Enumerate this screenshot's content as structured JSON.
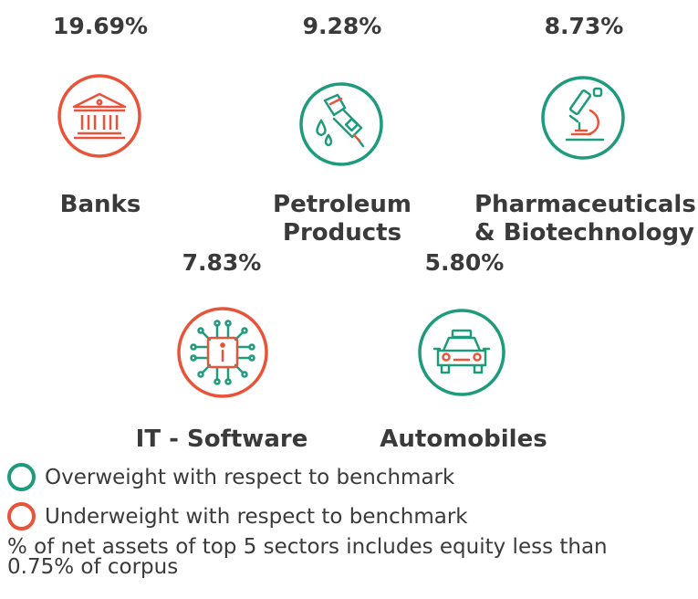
{
  "colors": {
    "overweight": "#1e9b7c",
    "underweight": "#e9533a"
  },
  "sectors": [
    {
      "name_line1": "Banks",
      "name_line2": "",
      "percent": "19.69%",
      "icon": "bank-icon",
      "weight": "underweight"
    },
    {
      "name_line1": "Petroleum",
      "name_line2": "Products",
      "percent": "9.28%",
      "icon": "fuel-nozzle-icon",
      "weight": "overweight"
    },
    {
      "name_line1": "Pharmaceuticals",
      "name_line2": "& Biotechnology",
      "percent": "8.73%",
      "icon": "microscope-icon",
      "weight": "overweight"
    },
    {
      "name_line1": "IT - Software",
      "name_line2": "",
      "percent": "7.83%",
      "icon": "chip-info-icon",
      "weight": "underweight"
    },
    {
      "name_line1": "Automobiles",
      "name_line2": "",
      "percent": "5.80%",
      "icon": "car-icon",
      "weight": "overweight"
    }
  ],
  "legend": {
    "overweight_label": "Overweight with respect to benchmark",
    "underweight_label": "Underweight with respect to benchmark"
  },
  "footnote": {
    "line1": "% of net assets of top 5 sectors includes equity less than",
    "line2": "0.75% of corpus"
  }
}
